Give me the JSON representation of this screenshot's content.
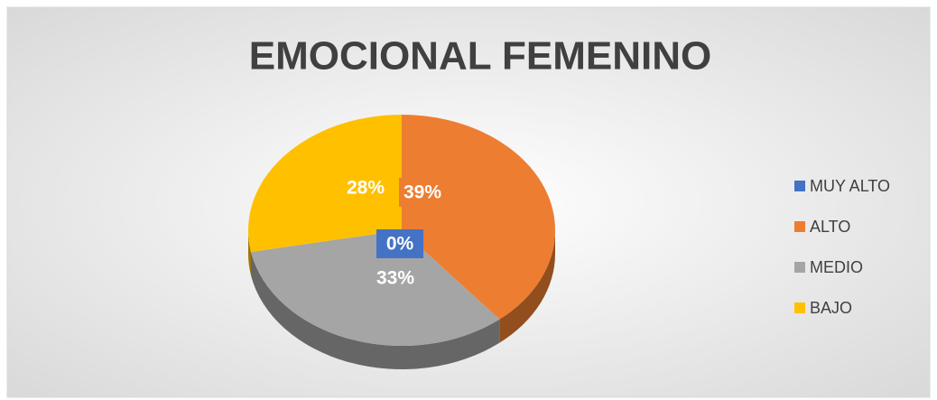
{
  "chart_data": {
    "type": "pie",
    "title": "EMOCIONAL FEMENINO",
    "categories": [
      "MUY ALTO",
      "ALTO",
      "MEDIO",
      "BAJO"
    ],
    "values": [
      0,
      39,
      33,
      28
    ],
    "value_labels": [
      "0%",
      "39%",
      "33%",
      "28%"
    ],
    "colors": [
      "#4472c4",
      "#ed7d31",
      "#a5a5a5",
      "#ffc000"
    ],
    "legend": "right"
  }
}
